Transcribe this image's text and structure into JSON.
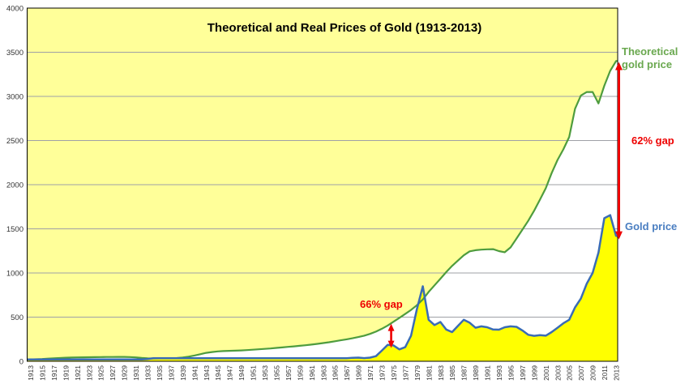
{
  "page": {
    "background": "#ffffff"
  },
  "chart_data": {
    "type": "area",
    "title": "Theoretical and Real Prices of Gold (1913-2013)",
    "xlabel": "",
    "ylabel": "",
    "x": {
      "start": 1913,
      "end": 2013,
      "tick_label_step": 2,
      "tick_labels_rotated": true
    },
    "y": {
      "min": 0,
      "max": 4000,
      "tick_step": 500
    },
    "grid": true,
    "plot_background": "#ffff99",
    "grid_color": "#9fa0a6",
    "border_color": "#000000",
    "axis_label_color": "#333333",
    "series": [
      {
        "name": "Theoretical gold price",
        "line_color": "#4e9c3e",
        "area_fill_below": "#ffffff",
        "values": [
          21,
          23,
          26,
          30,
          34,
          37,
          40,
          43,
          44,
          45,
          46,
          47,
          48,
          49,
          49,
          50,
          50,
          48,
          44,
          38,
          33,
          32,
          33,
          34,
          35,
          37,
          42,
          52,
          65,
          80,
          95,
          105,
          112,
          116,
          118,
          120,
          123,
          127,
          131,
          136,
          140,
          145,
          151,
          157,
          163,
          169,
          175,
          182,
          189,
          197,
          206,
          216,
          227,
          238,
          249,
          261,
          274,
          290,
          310,
          336,
          368,
          405,
          448,
          492,
          536,
          582,
          635,
          700,
          785,
          860,
          935,
          1010,
          1080,
          1140,
          1200,
          1245,
          1258,
          1264,
          1268,
          1270,
          1248,
          1235,
          1290,
          1390,
          1490,
          1590,
          1705,
          1830,
          1960,
          2130,
          2280,
          2400,
          2540,
          2860,
          3010,
          3050,
          3050,
          2920,
          3120,
          3290,
          3400
        ]
      },
      {
        "name": "Gold price",
        "line_color": "#3a6cb5",
        "area_fill_below": "#ffff00",
        "values": [
          21,
          21,
          21,
          21,
          21,
          21,
          21,
          21,
          21,
          21,
          21,
          21,
          21,
          21,
          21,
          21,
          21,
          21,
          21,
          21,
          26,
          35,
          35,
          35,
          35,
          35,
          35,
          35,
          35,
          35,
          35,
          35,
          35,
          35,
          35,
          35,
          35,
          35,
          35,
          35,
          35,
          35,
          35,
          35,
          35,
          35,
          35,
          35,
          35,
          35,
          35,
          35,
          35,
          35,
          35,
          39,
          41,
          36,
          41,
          58,
          120,
          185,
          180,
          135,
          160,
          290,
          590,
          850,
          470,
          410,
          445,
          360,
          330,
          400,
          470,
          437,
          380,
          395,
          385,
          360,
          358,
          385,
          395,
          390,
          350,
          300,
          288,
          295,
          290,
          330,
          380,
          430,
          470,
          610,
          710,
          880,
          1000,
          1230,
          1620,
          1655,
          1420
        ]
      }
    ],
    "series_labels": [
      {
        "text": "Theoretical gold price",
        "color": "#6aa84f"
      },
      {
        "text": "Gold price",
        "color": "#4a7ec1"
      }
    ],
    "annotations": [
      {
        "id": "gap-1974",
        "text": "66% gap",
        "color": "#ee0000",
        "arrow": {
          "year": 1974.6,
          "from_value": 425,
          "to_value": 150
        }
      },
      {
        "id": "gap-2013",
        "text": "62% gap",
        "color": "#ee0000",
        "arrow": {
          "year": 2013.5,
          "from_value": 3390,
          "to_value": 1380
        }
      }
    ]
  }
}
